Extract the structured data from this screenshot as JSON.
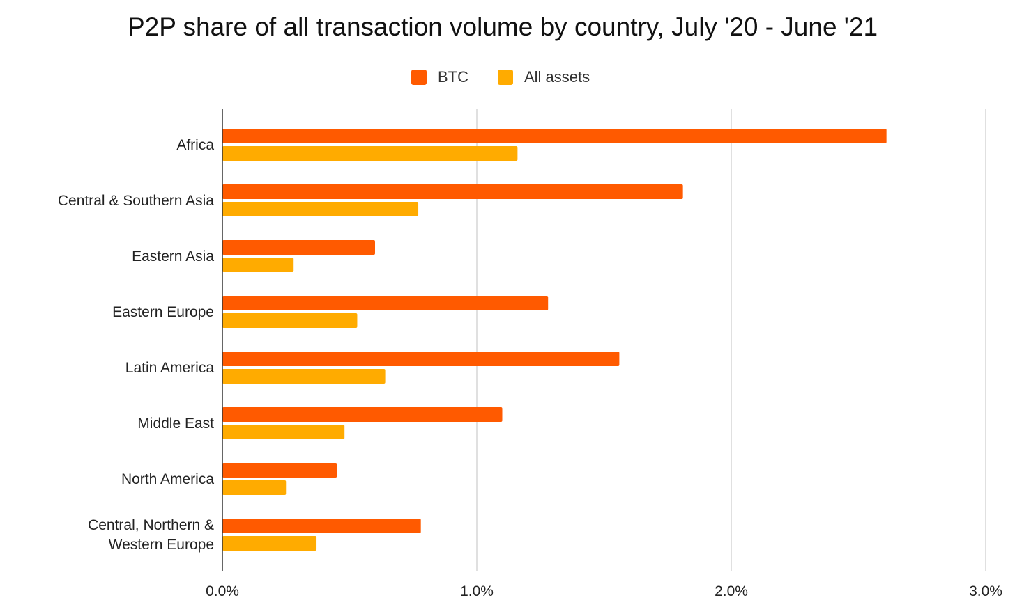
{
  "chart_data": {
    "type": "bar",
    "orientation": "horizontal",
    "title": "P2P share of all transaction volume by country, July '20 - June '21",
    "categories": [
      [
        "Africa"
      ],
      [
        "Central & Southern Asia"
      ],
      [
        "Eastern Asia"
      ],
      [
        "Eastern Europe"
      ],
      [
        "Latin America"
      ],
      [
        "Middle East"
      ],
      [
        "North America"
      ],
      [
        "Central, Northern &",
        "Western Europe"
      ]
    ],
    "series": [
      {
        "name": "BTC",
        "color": "#ff5a00",
        "values": [
          2.61,
          1.81,
          0.6,
          1.28,
          1.56,
          1.1,
          0.45,
          0.78
        ]
      },
      {
        "name": "All assets",
        "color": "#ffab00",
        "values": [
          1.16,
          0.77,
          0.28,
          0.53,
          0.64,
          0.48,
          0.25,
          0.37
        ]
      }
    ],
    "xlim": [
      0,
      3
    ],
    "x_ticks": [
      0,
      1,
      2,
      3
    ],
    "x_tick_labels": [
      "0.0%",
      "1.0%",
      "2.0%",
      "3.0%"
    ],
    "xlabel": "",
    "ylabel": "",
    "grid": true,
    "legend_position": "top-center"
  }
}
